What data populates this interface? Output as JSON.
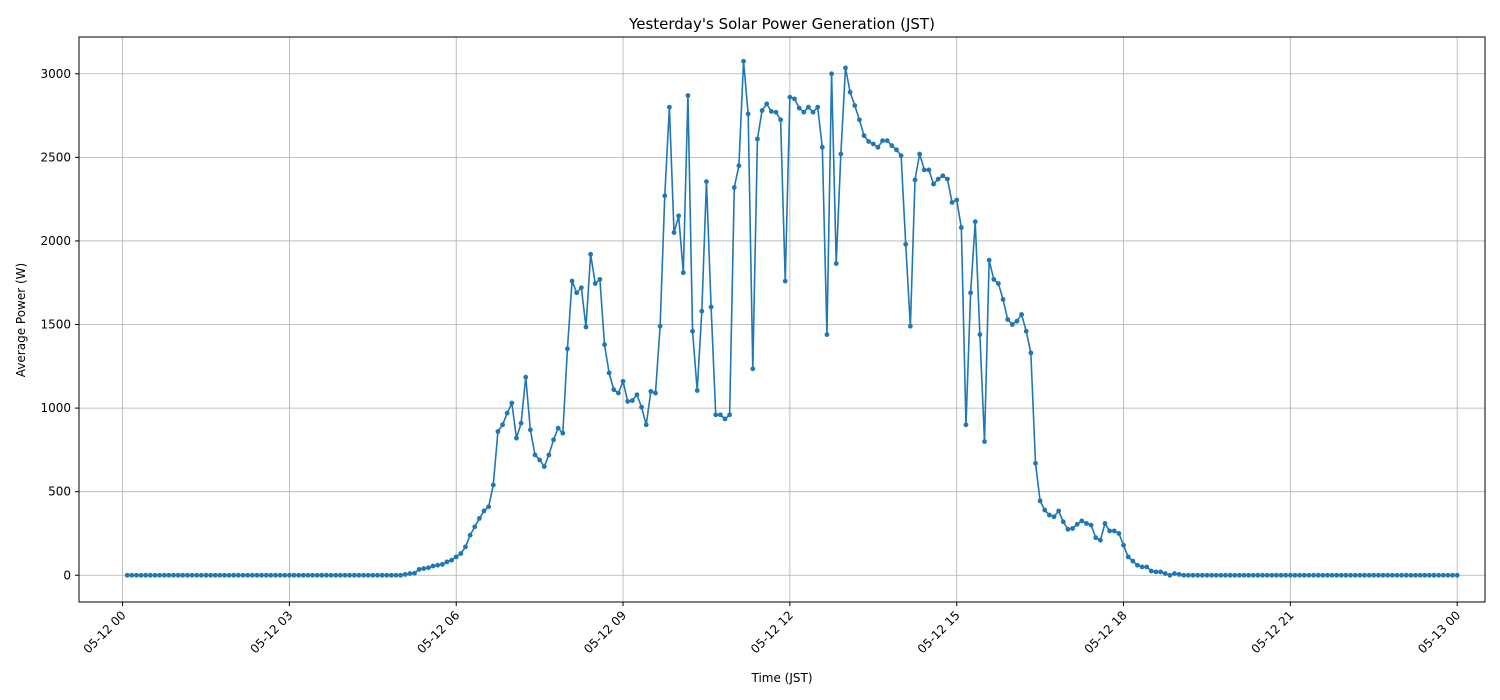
{
  "chart_data": {
    "type": "line",
    "title": "Yesterday's Solar Power Generation (JST)",
    "xlabel": "Time (JST)",
    "ylabel": "Average Power (W)",
    "x_start": "05-12 00:05",
    "x_step_minutes": 5,
    "xlim": [
      "05-11 23:13",
      "05-13 00:30"
    ],
    "ylim": [
      -160,
      3220
    ],
    "x_ticks": [
      "05-12 00",
      "05-12 03",
      "05-12 06",
      "05-12 09",
      "05-12 12",
      "05-12 15",
      "05-12 18",
      "05-12 21",
      "05-13 00"
    ],
    "y_ticks": [
      0,
      500,
      1000,
      1500,
      2000,
      2500,
      3000
    ],
    "grid": true,
    "legend": "none",
    "series_color": "#1f77b4",
    "series": [
      {
        "values": [
          0,
          0,
          0,
          0,
          0,
          0,
          0,
          0,
          0,
          0,
          0,
          0,
          0,
          0,
          0,
          0,
          0,
          0,
          0,
          0,
          0,
          0,
          0,
          0,
          0,
          0,
          0,
          0,
          0,
          0,
          0,
          0,
          0,
          0,
          0,
          0,
          0,
          0,
          0,
          0,
          0,
          0,
          0,
          0,
          0,
          0,
          0,
          0,
          0,
          0,
          0,
          0,
          0,
          0,
          0,
          0,
          0,
          0,
          0,
          0,
          5,
          10,
          12,
          35,
          40,
          45,
          55,
          60,
          65,
          80,
          90,
          110,
          130,
          170,
          240,
          290,
          340,
          385,
          410,
          540,
          860,
          900,
          970,
          1030,
          820,
          910,
          1185,
          870,
          720,
          690,
          650,
          720,
          810,
          880,
          850,
          1355,
          1760,
          1690,
          1720,
          1485,
          1920,
          1745,
          1770,
          1380,
          1210,
          1110,
          1090,
          1160,
          1040,
          1045,
          1080,
          1005,
          900,
          1100,
          1090,
          1490,
          2270,
          2800,
          2050,
          2150,
          1810,
          2870,
          1460,
          1105,
          1580,
          2355,
          1605,
          960,
          960,
          935,
          960,
          2320,
          2450,
          3075,
          2760,
          1235,
          2610,
          2780,
          2820,
          2775,
          2770,
          2725,
          1760,
          2860,
          2850,
          2795,
          2770,
          2800,
          2770,
          2800,
          2560,
          1440,
          3000,
          1865,
          2520,
          3035,
          2890,
          2810,
          2725,
          2630,
          2595,
          2580,
          2560,
          2600,
          2600,
          2570,
          2545,
          2510,
          1980,
          1490,
          2365,
          2520,
          2425,
          2425,
          2340,
          2370,
          2390,
          2370,
          2230,
          2245,
          2080,
          900,
          1690,
          2115,
          1440,
          800,
          1885,
          1770,
          1745,
          1650,
          1530,
          1500,
          1520,
          1560,
          1460,
          1330,
          670,
          445,
          390,
          360,
          350,
          385,
          320,
          275,
          280,
          305,
          325,
          310,
          300,
          225,
          210,
          310,
          265,
          265,
          250,
          180,
          110,
          85,
          60,
          50,
          50,
          25,
          20,
          20,
          10,
          0,
          10,
          5,
          0,
          0,
          0,
          0,
          0,
          0,
          0,
          0,
          0,
          0,
          0,
          0,
          0,
          0,
          0,
          0,
          0,
          0,
          0,
          0,
          0,
          0,
          0,
          0,
          0,
          0,
          0,
          0,
          0,
          0,
          0,
          0,
          0,
          0,
          0,
          0,
          0,
          0,
          0,
          0,
          0,
          0,
          0,
          0,
          0,
          0,
          0,
          0,
          0,
          0,
          0,
          0,
          0,
          0,
          0,
          0,
          0,
          0,
          0,
          0
        ]
      }
    ]
  }
}
